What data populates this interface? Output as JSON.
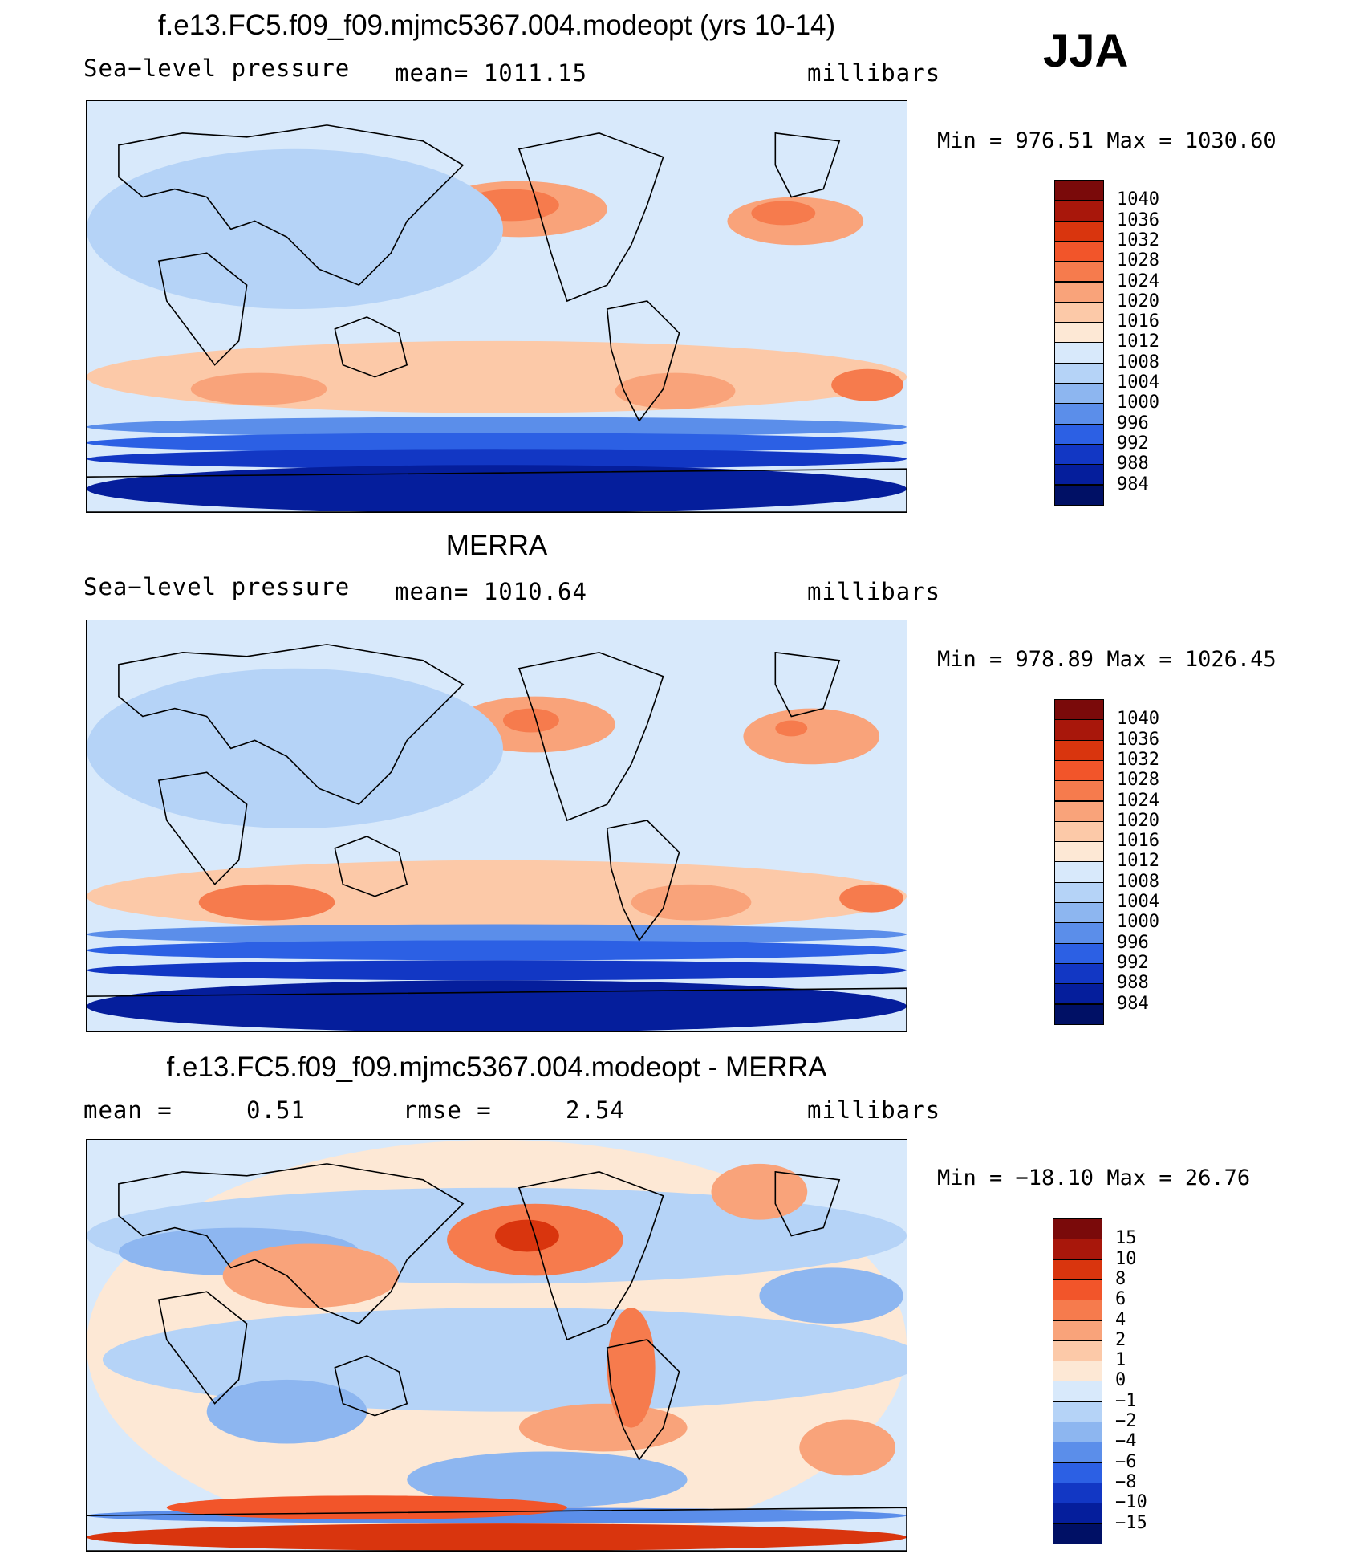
{
  "season": "JJA",
  "panels": [
    {
      "title": "f.e13.FC5.f09_f09.mjmc5367.004.modeopt (yrs 10-14)",
      "left_label": "Sea−level pressure",
      "center_label": "mean=  1011.15",
      "right_label": "millibars",
      "minmax": "Min  =  976.51  Max  =  1030.60",
      "colorbar": {
        "labels": [
          "1040",
          "1036",
          "1032",
          "1028",
          "1024",
          "1020",
          "1016",
          "1012",
          "1008",
          "1004",
          "1000",
          "996",
          "992",
          "988",
          "984"
        ],
        "colors": [
          "#7a0a0a",
          "#a8170b",
          "#d9350e",
          "#f2552a",
          "#f67b4d",
          "#f9a37a",
          "#fcc9a8",
          "#fde8d5",
          "#d8e9fb",
          "#b5d3f7",
          "#8db6f0",
          "#5b8eea",
          "#2c60e4",
          "#1237c4",
          "#051e9c",
          "#001065"
        ]
      },
      "map_name": "model-slp-map"
    },
    {
      "title": "MERRA",
      "left_label": "Sea−level pressure",
      "center_label": "mean=  1010.64",
      "right_label": "millibars",
      "minmax": "Min  =  978.89  Max  =  1026.45",
      "colorbar": {
        "labels": [
          "1040",
          "1036",
          "1032",
          "1028",
          "1024",
          "1020",
          "1016",
          "1012",
          "1008",
          "1004",
          "1000",
          "996",
          "992",
          "988",
          "984"
        ],
        "colors": [
          "#7a0a0a",
          "#a8170b",
          "#d9350e",
          "#f2552a",
          "#f67b4d",
          "#f9a37a",
          "#fcc9a8",
          "#fde8d5",
          "#d8e9fb",
          "#b5d3f7",
          "#8db6f0",
          "#5b8eea",
          "#2c60e4",
          "#1237c4",
          "#051e9c",
          "#001065"
        ]
      },
      "map_name": "merra-slp-map"
    },
    {
      "title": "f.e13.FC5.f09_f09.mjmc5367.004.modeopt - MERRA",
      "left_label": "mean =     0.51",
      "center_label": "rmse =     2.54",
      "right_label": "millibars",
      "minmax": "Min  =  −18.10  Max  =    26.76",
      "colorbar": {
        "labels": [
          "15",
          "10",
          "8",
          "6",
          "4",
          "2",
          "1",
          "0",
          "−1",
          "−2",
          "−4",
          "−6",
          "−8",
          "−10",
          "−15"
        ],
        "colors": [
          "#7a0a0a",
          "#a8170b",
          "#d9350e",
          "#f2552a",
          "#f67b4d",
          "#f9a37a",
          "#fcc9a8",
          "#fde8d5",
          "#d8e9fb",
          "#b5d3f7",
          "#8db6f0",
          "#5b8eea",
          "#2c60e4",
          "#1237c4",
          "#051e9c",
          "#001065"
        ]
      },
      "map_name": "difference-slp-map"
    }
  ]
}
